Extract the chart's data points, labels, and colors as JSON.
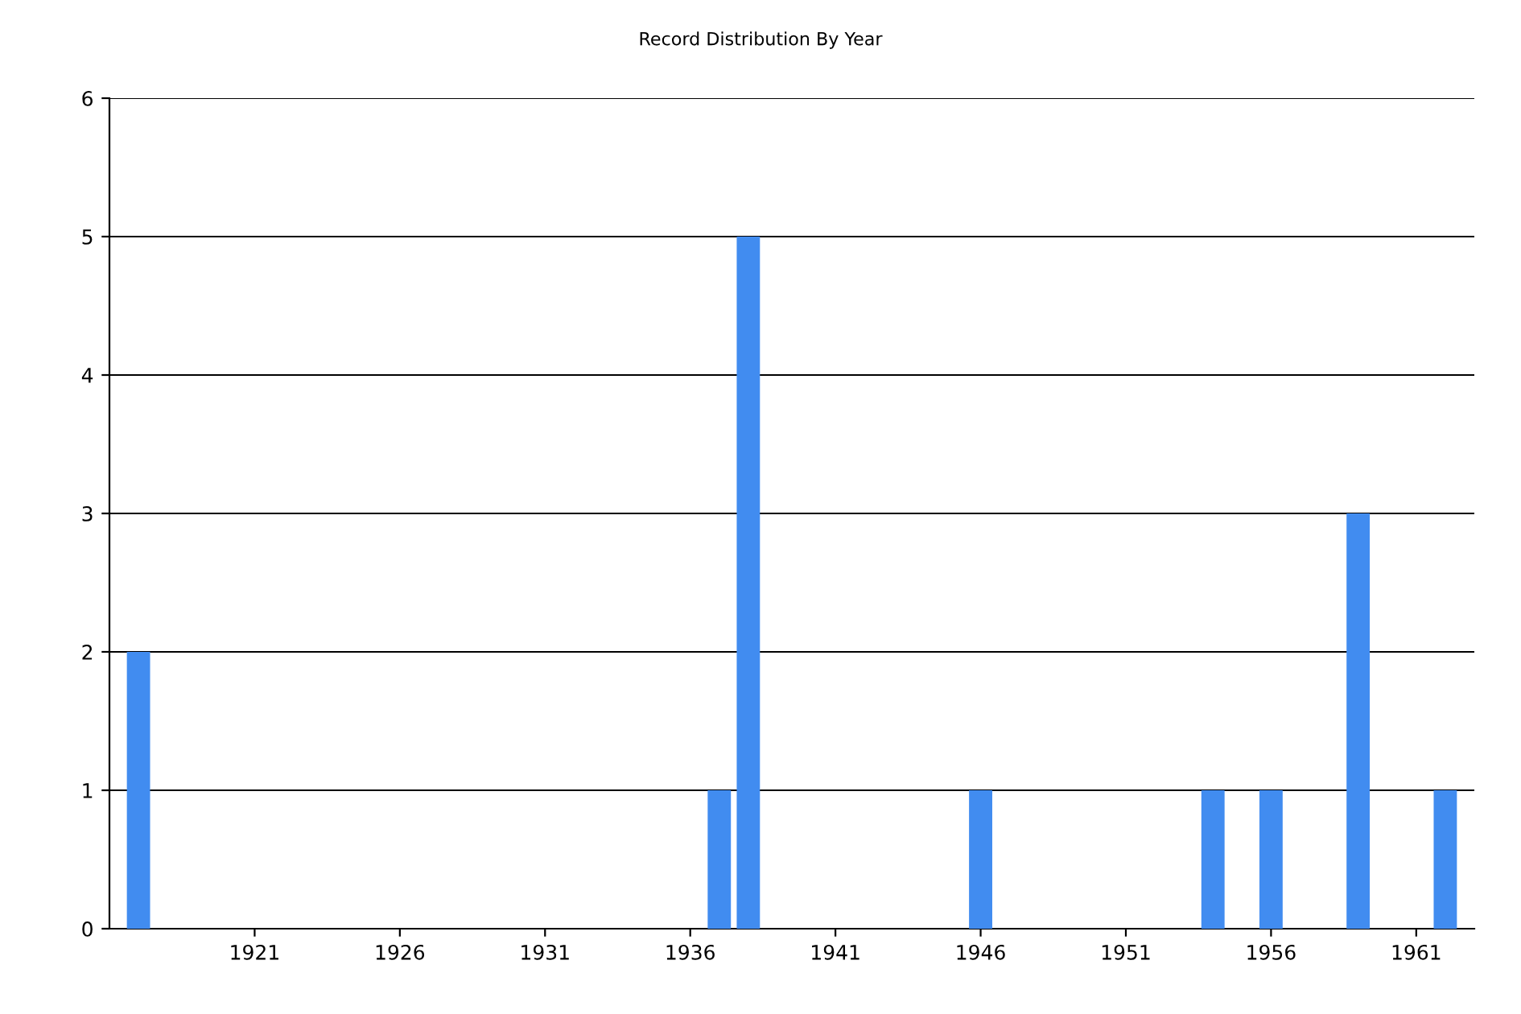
{
  "chart_data": {
    "type": "bar",
    "title": "Record Distribution By Year",
    "x": [
      1917,
      1937,
      1938,
      1946,
      1954,
      1956,
      1959,
      1962
    ],
    "values": [
      2,
      1,
      5,
      1,
      1,
      1,
      3,
      1
    ],
    "color": "#418cf0",
    "xlim": [
      1916,
      1963
    ],
    "xticks": [
      1921,
      1926,
      1931,
      1936,
      1941,
      1946,
      1951,
      1956,
      1961
    ],
    "ylim": [
      0,
      6
    ],
    "yticks": [
      0,
      1,
      2,
      3,
      4,
      5,
      6
    ],
    "grid": "y"
  }
}
